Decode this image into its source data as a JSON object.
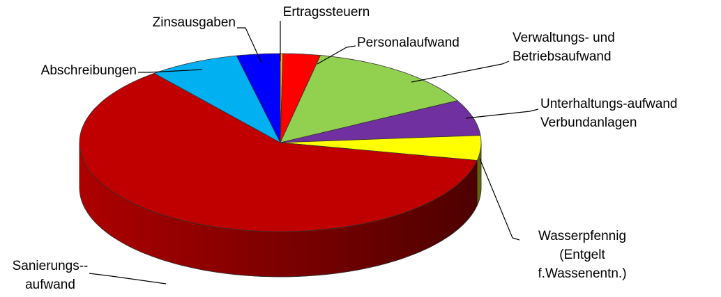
{
  "chart_data": {
    "type": "pie3d",
    "categories": [
      [
        "Ertragssteuern"
      ],
      [
        "Personalaufwand"
      ],
      [
        "Verwaltungs- und",
        "Betriebsaufwand"
      ],
      [
        "Unterhaltungs-aufwand",
        "Verbundanlagen"
      ],
      [
        "Wasserpfennig",
        "(Entgelt",
        "f.Wassenentn.)"
      ],
      [
        "Sanierungs--",
        "aufwand"
      ],
      [
        "Abschreibungen"
      ],
      [
        "Zinsausgaben"
      ]
    ],
    "values": [
      0.2,
      3,
      14,
      6.5,
      4.5,
      61,
      7.3,
      3.5
    ],
    "colors": [
      "#ffc000",
      "#ff0000",
      "#92d050",
      "#7030a0",
      "#ffff00",
      "#c00000",
      "#00b0f0",
      "#0000ff"
    ]
  }
}
